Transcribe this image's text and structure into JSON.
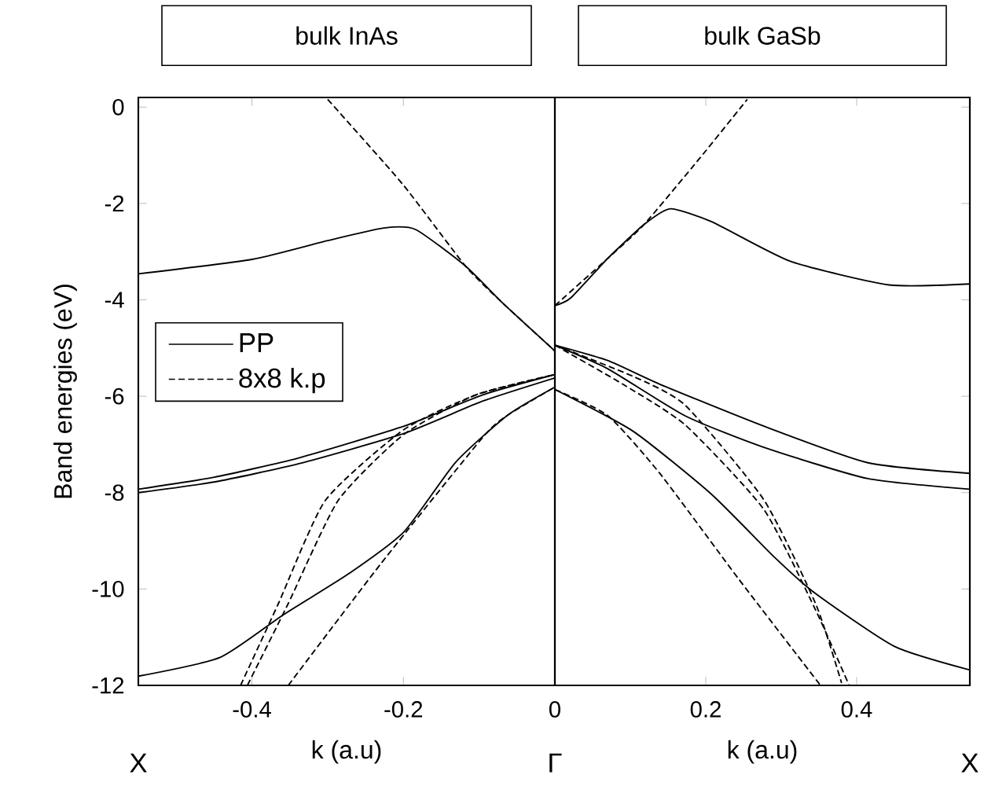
{
  "chart_data": [
    {
      "type": "line",
      "title": "bulk InAs",
      "xlabel": "k (a.u)",
      "ylabel": "Band energies (eV)",
      "xlim": [
        -0.55,
        0
      ],
      "ylim": [
        -12,
        0.2
      ],
      "xticks": [
        -0.4,
        -0.2,
        0
      ],
      "yticks": [
        -12,
        -10,
        -8,
        -6,
        -4,
        -2,
        0
      ],
      "legend": "left",
      "annotations": [
        "X",
        "Γ"
      ],
      "series": [
        {
          "name": "PP",
          "color": "#000000",
          "line_style": "solid",
          "x": [
            -0.55,
            -0.4,
            -0.3,
            -0.226,
            -0.184,
            -0.118,
            -0.068,
            0
          ],
          "values": [
            -3.46,
            -3.16,
            -2.77,
            -2.51,
            -2.54,
            -3.3,
            -4.08,
            -5.06
          ]
        },
        {
          "name": "8x8 k.p",
          "color": "#000000",
          "line_style": "dashed",
          "x": [
            -0.3,
            -0.201,
            -0.118,
            -0.068,
            0
          ],
          "values": [
            0.16,
            -1.6,
            -3.3,
            -4.08,
            -5.06
          ]
        },
        {
          "color": "#000000",
          "line_style": "solid",
          "x": [
            -0.55,
            -0.45,
            -0.338,
            -0.199,
            -0.095,
            0
          ],
          "values": [
            -7.93,
            -7.68,
            -7.28,
            -6.62,
            -5.97,
            -5.55
          ]
        },
        {
          "color": "#000000",
          "line_style": "solid",
          "x": [
            -0.55,
            -0.45,
            -0.338,
            -0.199,
            -0.095,
            0
          ],
          "values": [
            -8.0,
            -7.78,
            -7.4,
            -6.77,
            -6.1,
            -5.62
          ]
        },
        {
          "color": "#000000",
          "line_style": "solid",
          "x": [
            -0.55,
            -0.442,
            -0.359,
            -0.27,
            -0.199,
            -0.131,
            -0.062,
            0
          ],
          "values": [
            -11.81,
            -11.42,
            -10.54,
            -9.66,
            -8.81,
            -7.37,
            -6.39,
            -5.81
          ]
        },
        {
          "color": "#000000",
          "line_style": "dashed",
          "x": [
            -0.415,
            -0.365,
            -0.303,
            -0.2,
            -0.104,
            0
          ],
          "values": [
            -12,
            -10.3,
            -8.16,
            -6.7,
            -5.97,
            -5.55
          ]
        },
        {
          "color": "#000000",
          "line_style": "dashed",
          "x": [
            -0.406,
            -0.352,
            -0.286,
            -0.2,
            -0.104,
            0
          ],
          "values": [
            -12,
            -10.3,
            -8.16,
            -6.8,
            -5.97,
            -5.55
          ]
        },
        {
          "color": "#000000",
          "line_style": "dashed",
          "x": [
            -0.352,
            -0.229,
            -0.095,
            -0.062,
            0
          ],
          "values": [
            -12,
            -9.46,
            -6.85,
            -6.39,
            -5.81
          ]
        }
      ]
    },
    {
      "type": "line",
      "title": "bulk GaSb",
      "xlabel": "k (a.u)",
      "xlim": [
        0,
        0.55
      ],
      "ylim": [
        -12,
        0.2
      ],
      "xticks": [
        {
          "value": 0,
          "label": null
        },
        0.2,
        0.4
      ],
      "yticks": [
        -12,
        -10,
        -8,
        -6,
        -4,
        -2,
        0
      ],
      "tick_labels": "x",
      "annotations": [
        "X"
      ],
      "series": [
        {
          "color": "#000000",
          "line_style": "solid",
          "x": [
            0,
            0.021,
            0.07,
            0.118,
            0.153,
            0.208,
            0.312,
            0.443,
            0.55
          ],
          "values": [
            -4.12,
            -3.96,
            -3.14,
            -2.44,
            -2.11,
            -2.38,
            -3.2,
            -3.69,
            -3.67
          ]
        },
        {
          "color": "#000000",
          "line_style": "dashed",
          "x": [
            0,
            0.07,
            0.118,
            0.191,
            0.255
          ],
          "values": [
            -4.12,
            -3.14,
            -2.44,
            -1.08,
            0.16
          ]
        },
        {
          "color": "#000000",
          "line_style": "solid",
          "x": [
            0,
            0.07,
            0.139,
            0.277,
            0.415,
            0.55
          ],
          "values": [
            -4.94,
            -5.26,
            -5.75,
            -6.62,
            -7.38,
            -7.6
          ]
        },
        {
          "color": "#000000",
          "line_style": "solid",
          "x": [
            0,
            0.07,
            0.173,
            0.277,
            0.415,
            0.55
          ],
          "values": [
            -4.94,
            -5.43,
            -6.41,
            -7.06,
            -7.71,
            -7.93
          ]
        },
        {
          "color": "#000000",
          "line_style": "solid",
          "x": [
            0,
            0.104,
            0.208,
            0.291,
            0.346,
            0.45,
            0.55
          ],
          "values": [
            -5.86,
            -6.73,
            -8.04,
            -9.34,
            -10.1,
            -11.19,
            -11.68
          ]
        },
        {
          "color": "#000000",
          "line_style": "dashed",
          "x": [
            0,
            0.104,
            0.173,
            0.277,
            0.346,
            0.38
          ],
          "values": [
            -4.94,
            -5.59,
            -6.19,
            -8.15,
            -10.32,
            -11.95
          ]
        },
        {
          "color": "#000000",
          "line_style": "dashed",
          "x": [
            0,
            0.09,
            0.173,
            0.277,
            0.346,
            0.39
          ],
          "values": [
            -4.94,
            -5.75,
            -6.6,
            -8.35,
            -10.45,
            -12
          ]
        },
        {
          "color": "#000000",
          "line_style": "dashed",
          "x": [
            0,
            0.07,
            0.139,
            0.243,
            0.352
          ],
          "values": [
            -5.86,
            -6.4,
            -7.6,
            -9.78,
            -12
          ]
        }
      ]
    }
  ]
}
